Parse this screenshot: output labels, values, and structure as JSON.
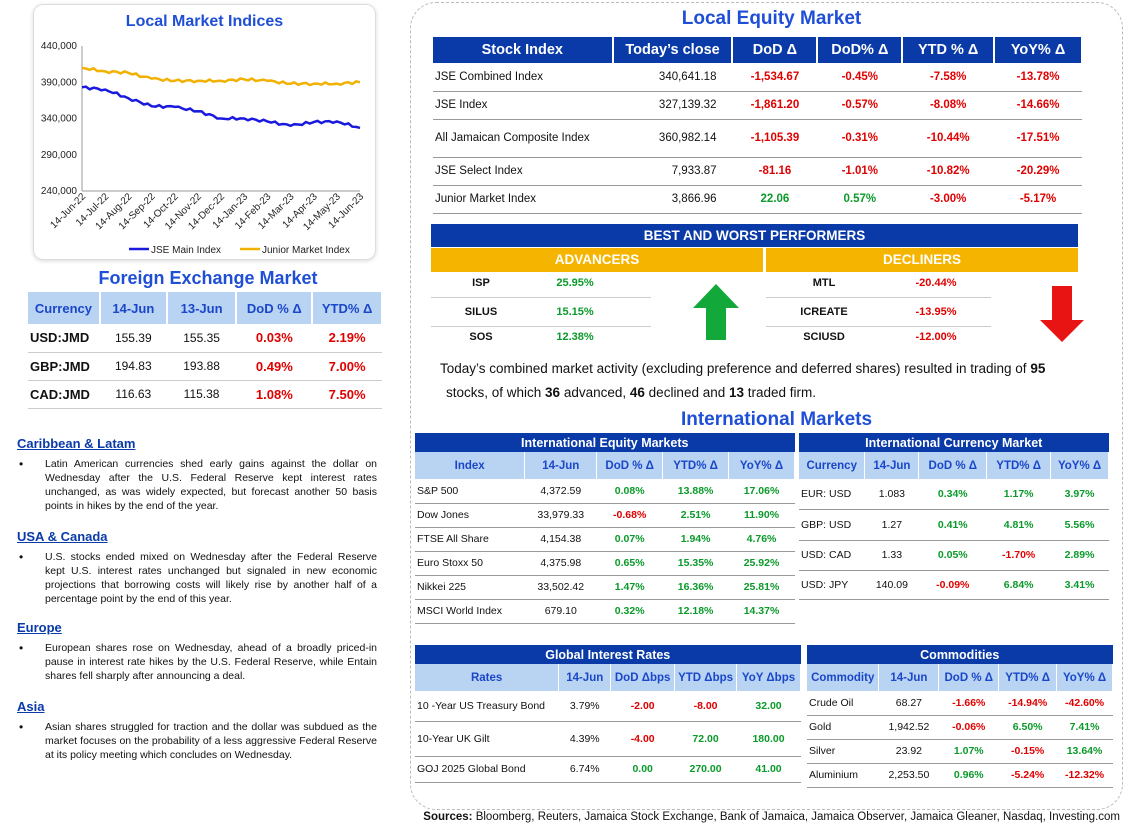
{
  "local_indices": {
    "title": "Local Market Indices",
    "y_ticks": [
      "440,000",
      "390,000",
      "340,000",
      "290,000",
      "240,000"
    ],
    "x_ticks": [
      "14-Jun-22",
      "14-Jul-22",
      "14-Aug-22",
      "14-Sep-22",
      "14-Oct-22",
      "14-Nov-22",
      "14-Dec-22",
      "14-Jan-23",
      "14-Feb-23",
      "14-Mar-23",
      "14-Apr-23",
      "14-May-23",
      "14-Jun-23"
    ],
    "legend": [
      "JSE Main Index",
      "Junior Market Index"
    ],
    "colors": {
      "main": "#1a1adf",
      "junior": "#f2b100"
    }
  },
  "chart_data": {
    "type": "line",
    "title": "Local Market Indices",
    "ylim": [
      240000,
      440000
    ],
    "x": [
      "14-Jun-22",
      "14-Jul-22",
      "14-Aug-22",
      "14-Sep-22",
      "14-Oct-22",
      "14-Nov-22",
      "14-Dec-22",
      "14-Jan-23",
      "14-Feb-23",
      "14-Mar-23",
      "14-Apr-23",
      "14-May-23",
      "14-Jun-23"
    ],
    "series": [
      {
        "name": "JSE Main Index",
        "values": [
          383000,
          380000,
          368000,
          357000,
          356000,
          350000,
          340000,
          340000,
          336000,
          330000,
          335000,
          336000,
          327000
        ]
      },
      {
        "name": "Junior Market Index",
        "values": [
          410000,
          405000,
          403000,
          395000,
          392000,
          392000,
          392000,
          394000,
          392000,
          388000,
          388000,
          388000,
          390000
        ]
      }
    ]
  },
  "fx": {
    "title": "Foreign Exchange Market",
    "headers": [
      "Currency",
      "14-Jun",
      "13-Jun",
      "DoD % Δ",
      "YTD% Δ"
    ],
    "rows": [
      {
        "cur": "USD:JMD",
        "a": "155.39",
        "b": "155.35",
        "dod": "0.03%",
        "ytd": "2.19%"
      },
      {
        "cur": "GBP:JMD",
        "a": "194.83",
        "b": "193.88",
        "dod": "0.49%",
        "ytd": "7.00%"
      },
      {
        "cur": "CAD:JMD",
        "a": "116.63",
        "b": "115.38",
        "dod": "1.08%",
        "ytd": "7.50%"
      }
    ]
  },
  "news": [
    {
      "title": "Caribbean & Latam",
      "text": "Latin American currencies shed early gains against the dollar on Wednesday after the U.S. Federal Reserve kept interest rates unchanged, as was widely expected, but forecast another 50 basis points in hikes by the end of the year."
    },
    {
      "title": "USA & Canada",
      "text": "U.S. stocks ended mixed on Wednesday after the Federal Reserve kept U.S. interest rates unchanged but signaled in new economic projections that borrowing costs will likely rise by another half of a percentage point by the end of this year."
    },
    {
      "title": "Europe",
      "text": "European shares rose on Wednesday, ahead of a broadly priced-in pause in interest rate hikes by the U.S. Federal Reserve, while Entain shares fell sharply after announcing a deal."
    },
    {
      "title": "Asia",
      "text": "Asian shares struggled for traction and the dollar was subdued as the market focuses on the probability of a less aggressive Federal Reserve at its policy meeting which concludes on Wednesday."
    }
  ],
  "local_equity": {
    "title": "Local Equity Market",
    "headers": [
      "Stock Index",
      "Today’s close",
      "DoD  Δ",
      "DoD% Δ",
      "YTD % Δ",
      "YoY% Δ"
    ],
    "rows": [
      {
        "name": "JSE Combined Index",
        "close": "340,641.18",
        "dod": "-1,534.67",
        "dodp": "-0.45%",
        "ytd": "-7.58%",
        "yoy": "-13.78%"
      },
      {
        "name": "JSE Index",
        "close": "327,139.32",
        "dod": "-1,861.20",
        "dodp": "-0.57%",
        "ytd": "-8.08%",
        "yoy": "-14.66%"
      },
      {
        "name": "All Jamaican Composite Index",
        "close": "360,982.14",
        "dod": "-1,105.39",
        "dodp": "-0.31%",
        "ytd": "-10.44%",
        "yoy": "-17.51%"
      },
      {
        "name": "JSE Select Index",
        "close": "7,933.87",
        "dod": "-81.16",
        "dodp": "-1.01%",
        "ytd": "-10.82%",
        "yoy": "-20.29%"
      },
      {
        "name": "Junior Market Index",
        "close": "3,866.96",
        "dod": "22.06",
        "dodp": "0.57%",
        "ytd": "-3.00%",
        "yoy": "-5.17%"
      }
    ]
  },
  "performers": {
    "title": "BEST AND WORST PERFORMERS",
    "advancers_label": "ADVANCERS",
    "decliners_label": "DECLINERS",
    "advancers": [
      {
        "sym": "ISP",
        "pct": "25.95%"
      },
      {
        "sym": "SILUS",
        "pct": "15.15%"
      },
      {
        "sym": "SOS",
        "pct": "12.38%"
      }
    ],
    "decliners": [
      {
        "sym": "MTL",
        "pct": "-20.44%"
      },
      {
        "sym": "ICREATE",
        "pct": "-13.95%"
      },
      {
        "sym": "SCIUSD",
        "pct": "-12.00%"
      }
    ]
  },
  "summary": {
    "p1": "Today’s combined market activity (excluding preference and deferred shares) resulted in trading of ",
    "n_traded": "95",
    "p2": " stocks, of which ",
    "n_adv": "36",
    "p3": " advanced, ",
    "n_dec": "46",
    "p4": " declined and ",
    "n_firm": "13",
    "p5": " traded firm."
  },
  "intl": {
    "title": "International Markets",
    "equity": {
      "title": "International Equity Markets",
      "headers": [
        "Index",
        "14-Jun",
        "DoD % Δ",
        "YTD% Δ",
        "YoY% Δ"
      ],
      "rows": [
        [
          "S&P 500",
          "4,372.59",
          "0.08%",
          "13.88%",
          "17.06%"
        ],
        [
          "Dow Jones",
          "33,979.33",
          "-0.68%",
          "2.51%",
          "11.90%"
        ],
        [
          "FTSE All Share",
          "4,154.38",
          "0.07%",
          "1.94%",
          "4.76%"
        ],
        [
          "Euro Stoxx 50",
          "4,375.98",
          "0.65%",
          "15.35%",
          "25.92%"
        ],
        [
          "Nikkei 225",
          "33,502.42",
          "1.47%",
          "16.36%",
          "25.81%"
        ],
        [
          "MSCI World Index",
          "679.10",
          "0.32%",
          "12.18%",
          "14.37%"
        ]
      ]
    },
    "currency": {
      "title": "International Currency Market",
      "headers": [
        "Currency",
        "14-Jun",
        "DoD % Δ",
        "YTD% Δ",
        "YoY% Δ"
      ],
      "rows": [
        [
          "EUR: USD",
          "1.083",
          "0.34%",
          "1.17%",
          "3.97%"
        ],
        [
          "GBP: USD",
          "1.27",
          "0.41%",
          "4.81%",
          "5.56%"
        ],
        [
          "USD: CAD",
          "1.33",
          "0.05%",
          "-1.70%",
          "2.89%"
        ],
        [
          "USD: JPY",
          "140.09",
          "-0.09%",
          "6.84%",
          "3.41%"
        ]
      ]
    },
    "rates": {
      "title": "Global Interest Rates",
      "headers": [
        "Rates",
        "14-Jun",
        "DoD Δbps",
        "YTD Δbps",
        "YoY Δbps"
      ],
      "rows": [
        [
          "10 -Year US Treasury Bond",
          "3.79%",
          "-2.00",
          "-8.00",
          "32.00"
        ],
        [
          "10-Year UK Gilt",
          "4.39%",
          "-4.00",
          "72.00",
          "180.00"
        ],
        [
          "GOJ 2025 Global Bond",
          "6.74%",
          "0.00",
          "270.00",
          "41.00"
        ]
      ]
    },
    "commodities": {
      "title": "Commodities",
      "headers": [
        "Commodity",
        "14-Jun",
        "DoD % Δ",
        "YTD% Δ",
        "YoY% Δ"
      ],
      "rows": [
        [
          "Crude Oil",
          "68.27",
          "-1.66%",
          "-14.94%",
          "-42.60%"
        ],
        [
          "Gold",
          "1,942.52",
          "-0.06%",
          "6.50%",
          "7.41%"
        ],
        [
          "Silver",
          "23.92",
          "1.07%",
          "-0.15%",
          "13.64%"
        ],
        [
          "Aluminium",
          "2,253.50",
          "0.96%",
          "-5.24%",
          "-12.32%"
        ]
      ]
    }
  },
  "sources": {
    "label": "Sources:",
    "text": " Bloomberg, Reuters, Jamaica Stock Exchange, Bank of Jamaica, Jamaica Observer, Jamaica Gleaner, Nasdaq, Investing.com"
  }
}
